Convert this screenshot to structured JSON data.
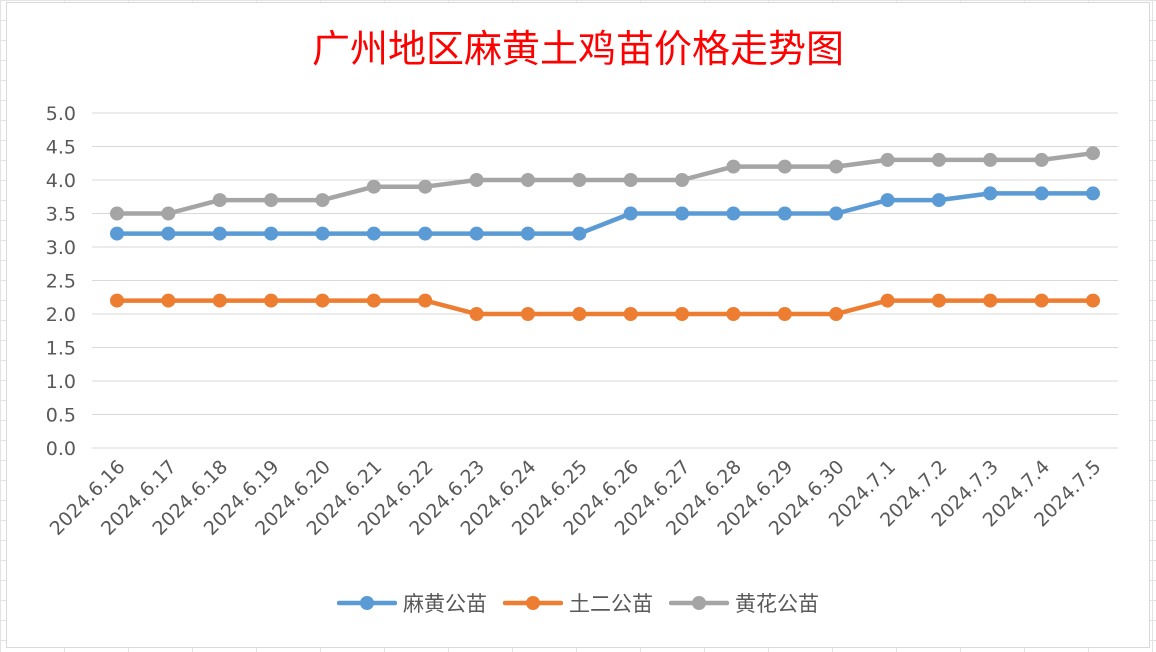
{
  "chart_data": {
    "type": "line",
    "title": "广州地区麻黄土鸡苗价格走势图",
    "xlabel": "",
    "ylabel": "",
    "categories": [
      "2024.6.16",
      "2024.6.17",
      "2024.6.18",
      "2024.6.19",
      "2024.6.20",
      "2024.6.21",
      "2024.6.22",
      "2024.6.23",
      "2024.6.24",
      "2024.6.25",
      "2024.6.26",
      "2024.6.27",
      "2024.6.28",
      "2024.6.29",
      "2024.6.30",
      "2024.7.1",
      "2024.7.2",
      "2024.7.3",
      "2024.7.4",
      "2024.7.5"
    ],
    "series": [
      {
        "name": "麻黄公苗",
        "color": "#5b9bd5",
        "values": [
          3.2,
          3.2,
          3.2,
          3.2,
          3.2,
          3.2,
          3.2,
          3.2,
          3.2,
          3.2,
          3.5,
          3.5,
          3.5,
          3.5,
          3.5,
          3.7,
          3.7,
          3.8,
          3.8,
          3.8
        ]
      },
      {
        "name": "土二公苗",
        "color": "#ed7d31",
        "values": [
          2.2,
          2.2,
          2.2,
          2.2,
          2.2,
          2.2,
          2.2,
          2.0,
          2.0,
          2.0,
          2.0,
          2.0,
          2.0,
          2.0,
          2.0,
          2.2,
          2.2,
          2.2,
          2.2,
          2.2
        ]
      },
      {
        "name": "黄花公苗",
        "color": "#a5a5a5",
        "values": [
          3.5,
          3.5,
          3.7,
          3.7,
          3.7,
          3.9,
          3.9,
          4.0,
          4.0,
          4.0,
          4.0,
          4.0,
          4.2,
          4.2,
          4.2,
          4.3,
          4.3,
          4.3,
          4.3,
          4.4
        ]
      }
    ],
    "ylim": [
      0,
      5
    ],
    "yticks": [
      "0.0",
      "0.5",
      "1.0",
      "1.5",
      "2.0",
      "2.5",
      "3.0",
      "3.5",
      "4.0",
      "4.5",
      "5.0"
    ],
    "grid": true,
    "legend_position": "bottom"
  }
}
